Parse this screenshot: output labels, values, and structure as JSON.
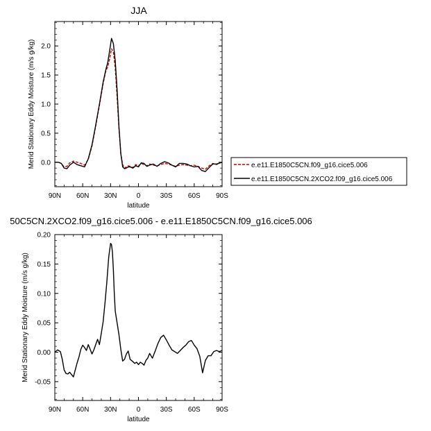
{
  "chart_data": [
    {
      "type": "line",
      "title": "JJA",
      "xlabel": "latitude",
      "ylabel": "Merid Stationary Eddy Moisture (m/s g/kg)",
      "x_tick_labels": [
        "90N",
        "60N",
        "30N",
        "0",
        "30S",
        "60S",
        "90S"
      ],
      "x_tick_values": [
        90,
        60,
        30,
        0,
        -30,
        -60,
        -90
      ],
      "xlim": [
        90,
        -90
      ],
      "ylim": [
        -0.42,
        2.42
      ],
      "y_ticks": [
        0.0,
        0.5,
        1.0,
        1.5,
        2.0
      ],
      "y_tick_labels": [
        "0.0",
        "0.5",
        "1.0",
        "1.5",
        "2.0"
      ],
      "legend_position": "right",
      "series": [
        {
          "name": "e.e11.E1850C5CN.f09_g16.cice5.006",
          "color": "#cc0000",
          "dash": "dashed",
          "x": [
            90,
            86,
            83,
            80,
            77,
            74,
            70,
            66,
            62,
            58,
            54,
            50,
            46,
            42,
            38,
            35,
            33,
            31,
            29,
            27,
            25,
            23,
            21,
            19,
            17,
            15,
            13,
            11,
            9,
            6,
            3,
            0,
            -3,
            -6,
            -9,
            -12,
            -16,
            -20,
            -24,
            -28,
            -32,
            -36,
            -40,
            -44,
            -48,
            -52,
            -56,
            -60,
            -64,
            -68,
            -72,
            -76,
            -80,
            -84,
            -88,
            -90
          ],
          "y": [
            0.0,
            0.0,
            -0.02,
            -0.08,
            -0.07,
            -0.01,
            0.02,
            0.0,
            -0.02,
            -0.05,
            0.05,
            0.28,
            0.62,
            0.98,
            1.35,
            1.58,
            1.64,
            1.78,
            1.95,
            1.9,
            1.62,
            1.12,
            0.58,
            0.15,
            -0.04,
            -0.1,
            -0.08,
            -0.06,
            -0.07,
            -0.09,
            -0.04,
            -0.06,
            -0.02,
            -0.04,
            -0.06,
            -0.03,
            -0.05,
            -0.06,
            -0.04,
            -0.02,
            -0.03,
            -0.05,
            -0.07,
            -0.05,
            -0.04,
            -0.05,
            -0.06,
            -0.05,
            -0.07,
            -0.1,
            -0.12,
            -0.06,
            -0.02,
            -0.04,
            -0.01,
            0.0
          ]
        },
        {
          "name": "e.e11.E1850C5CN.2XCO2.f09_g16.cice5.006",
          "color": "#000000",
          "dash": "solid",
          "x": [
            90,
            86,
            83,
            80,
            77,
            74,
            70,
            66,
            62,
            58,
            54,
            50,
            46,
            42,
            38,
            35,
            33,
            31,
            29,
            27,
            25,
            23,
            21,
            19,
            17,
            15,
            13,
            11,
            9,
            6,
            3,
            0,
            -3,
            -6,
            -9,
            -12,
            -16,
            -20,
            -24,
            -28,
            -32,
            -36,
            -40,
            -44,
            -48,
            -52,
            -56,
            -60,
            -64,
            -68,
            -72,
            -76,
            -80,
            -84,
            -88,
            -90
          ],
          "y": [
            0.0,
            0.0,
            -0.02,
            -0.1,
            -0.11,
            -0.05,
            0.0,
            -0.04,
            -0.06,
            -0.08,
            0.06,
            0.3,
            0.64,
            1.0,
            1.38,
            1.6,
            1.72,
            1.92,
            2.13,
            2.04,
            1.75,
            1.25,
            0.62,
            0.15,
            -0.08,
            -0.11,
            -0.1,
            -0.08,
            -0.08,
            -0.1,
            -0.06,
            -0.08,
            -0.01,
            -0.02,
            -0.07,
            -0.05,
            -0.03,
            -0.07,
            -0.02,
            0.01,
            -0.01,
            -0.05,
            -0.08,
            -0.02,
            -0.02,
            -0.03,
            -0.06,
            -0.08,
            -0.07,
            -0.14,
            -0.16,
            -0.09,
            -0.03,
            -0.03,
            -0.01,
            0.0
          ]
        }
      ]
    },
    {
      "type": "line",
      "title": "50C5CN.2XCO2.f09_g16.cice5.006 - e.e11.E1850C5CN.f09_g16.cice5.006",
      "xlabel": "latitude",
      "ylabel": "Merid Stationary Eddy Moisture (m/s g/kg)",
      "x_tick_labels": [
        "90N",
        "60N",
        "30N",
        "0",
        "30S",
        "60S",
        "90S"
      ],
      "x_tick_values": [
        90,
        60,
        30,
        0,
        -30,
        -60,
        -90
      ],
      "xlim": [
        90,
        -90
      ],
      "ylim": [
        -0.082,
        0.2
      ],
      "y_ticks": [
        -0.05,
        0.0,
        0.05,
        0.1,
        0.15,
        0.2
      ],
      "y_tick_labels": [
        "-0.05",
        "0.00",
        "0.05",
        "0.10",
        "0.15",
        "0.20"
      ],
      "series": [
        {
          "color": "#000000",
          "dash": "solid",
          "x": [
            90,
            87,
            84,
            82,
            80,
            78,
            76,
            74,
            72,
            70,
            68,
            66,
            64,
            62,
            60,
            58,
            56,
            54,
            52,
            50,
            48,
            46,
            44,
            42,
            40,
            38,
            36,
            34,
            32,
            30,
            29,
            28,
            27,
            26,
            25,
            23,
            21,
            19,
            17,
            15,
            13,
            11,
            9,
            6,
            4,
            2,
            0,
            -2,
            -4,
            -6,
            -8,
            -10,
            -12,
            -15,
            -18,
            -21,
            -24,
            -27,
            -30,
            -33,
            -36,
            -39,
            -42,
            -45,
            -48,
            -51,
            -54,
            -57,
            -60,
            -63,
            -66,
            -69,
            -72,
            -75,
            -78,
            -81,
            -84,
            -87,
            -90
          ],
          "y": [
            0.0,
            0.004,
            0.001,
            -0.012,
            -0.03,
            -0.036,
            -0.037,
            -0.034,
            -0.038,
            -0.042,
            -0.03,
            -0.018,
            -0.008,
            0.005,
            0.012,
            0.008,
            0.003,
            0.013,
            0.005,
            -0.003,
            0.004,
            0.013,
            0.022,
            0.013,
            0.032,
            0.052,
            0.084,
            0.12,
            0.162,
            0.185,
            0.183,
            0.17,
            0.14,
            0.1,
            0.07,
            0.05,
            0.03,
            0.005,
            -0.015,
            -0.012,
            -0.003,
            0.002,
            -0.012,
            -0.016,
            -0.019,
            -0.017,
            -0.021,
            -0.017,
            -0.019,
            -0.022,
            -0.014,
            -0.01,
            -0.002,
            -0.01,
            0.002,
            0.015,
            0.025,
            0.029,
            0.021,
            0.012,
            0.004,
            0.001,
            -0.002,
            0.003,
            0.008,
            0.012,
            0.018,
            0.02,
            0.012,
            0.006,
            -0.007,
            -0.035,
            -0.014,
            -0.006,
            -0.006,
            0.001,
            0.003,
            0.001,
            0.003
          ]
        }
      ]
    }
  ]
}
